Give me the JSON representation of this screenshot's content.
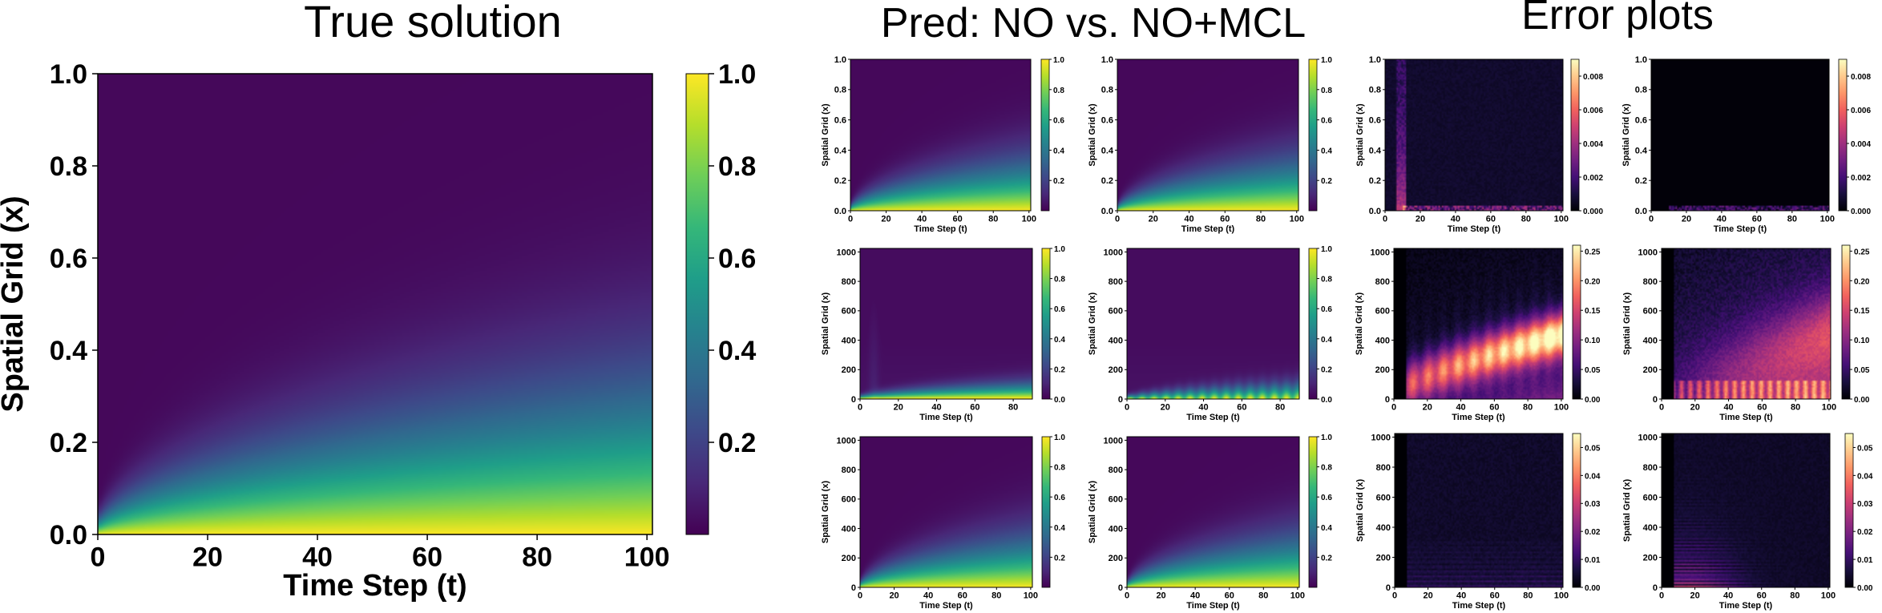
{
  "section_titles": {
    "true_solution": "True solution",
    "prediction": "Pred: NO vs. NO+MCL",
    "error": "Error plots"
  },
  "colors": {
    "background": "#ffffff",
    "viridis": [
      "#440154",
      "#482878",
      "#3e4989",
      "#31688e",
      "#26828e",
      "#1f9e89",
      "#35b779",
      "#6ece58",
      "#b5de2b",
      "#fde725"
    ],
    "magma": [
      "#000004",
      "#180f3d",
      "#440f76",
      "#721f81",
      "#9e2f7f",
      "#cd4071",
      "#f1605d",
      "#fd9668",
      "#feca8d",
      "#fcfdbf"
    ]
  },
  "chart_data": [
    {
      "id": "main",
      "type": "heatmap",
      "title": "True solution",
      "xlabel": "Time Step (t)",
      "ylabel": "Spatial Grid (x)",
      "xlim": [
        0,
        101
      ],
      "ylim": [
        0,
        1
      ],
      "xticks": [
        "0",
        "20",
        "40",
        "60",
        "80",
        "100"
      ],
      "yticks": [
        "0.0",
        "0.2",
        "0.4",
        "0.6",
        "0.8",
        "1.0"
      ],
      "colormap": "viridis",
      "colorbar_range": [
        0.0,
        1.0
      ],
      "colorbar_ticks": [
        "0.2",
        "0.4",
        "0.6",
        "0.8",
        "1.0"
      ],
      "colorbar_tick_values": [
        0.2,
        0.4,
        0.6,
        0.8,
        1.0
      ],
      "field": "diffusion"
    },
    {
      "id": "pred-no-row1",
      "type": "heatmap",
      "group": "prediction",
      "row": 1,
      "variant": "NO",
      "xlabel": "Time Step (t)",
      "ylabel": "Spatial Grid (x)",
      "xlim": [
        0,
        101
      ],
      "ylim": [
        0,
        1
      ],
      "xticks": [
        "0",
        "20",
        "40",
        "60",
        "80",
        "100"
      ],
      "yticks": [
        "0.0",
        "0.2",
        "0.4",
        "0.6",
        "0.8",
        "1.0"
      ],
      "colormap": "viridis",
      "colorbar_range": [
        0.0,
        1.0
      ],
      "colorbar_ticks": [
        "0.2",
        "0.4",
        "0.6",
        "0.8",
        "1.0"
      ],
      "colorbar_tick_values": [
        0.2,
        0.4,
        0.6,
        0.8,
        1.0
      ],
      "field": "diffusion"
    },
    {
      "id": "pred-mcl-row1",
      "type": "heatmap",
      "group": "prediction",
      "row": 1,
      "variant": "NO+MCL",
      "xlabel": "Time Step (t)",
      "ylabel": "Spatial Grid (x)",
      "xlim": [
        0,
        101
      ],
      "ylim": [
        0,
        1
      ],
      "xticks": [
        "0",
        "20",
        "40",
        "60",
        "80",
        "100"
      ],
      "yticks": [
        "0.0",
        "0.2",
        "0.4",
        "0.6",
        "0.8",
        "1.0"
      ],
      "colormap": "viridis",
      "colorbar_range": [
        0.0,
        1.0
      ],
      "colorbar_ticks": [
        "0.2",
        "0.4",
        "0.6",
        "0.8",
        "1.0"
      ],
      "colorbar_tick_values": [
        0.2,
        0.4,
        0.6,
        0.8,
        1.0
      ],
      "field": "diffusion"
    },
    {
      "id": "err-no-row1",
      "type": "heatmap",
      "group": "error",
      "row": 1,
      "variant": "NO",
      "xlabel": "Time Step (t)",
      "ylabel": "Spatial Grid (x)",
      "xlim": [
        0,
        101
      ],
      "ylim": [
        0,
        1
      ],
      "xticks": [
        "0",
        "20",
        "40",
        "60",
        "80",
        "100"
      ],
      "yticks": [
        "0.0",
        "0.2",
        "0.4",
        "0.6",
        "0.8",
        "1.0"
      ],
      "colormap": "magma",
      "colorbar_range": [
        0.0,
        0.009
      ],
      "colorbar_ticks": [
        "0.000",
        "0.002",
        "0.004",
        "0.006",
        "0.008"
      ],
      "colorbar_tick_values": [
        0.0,
        0.002,
        0.004,
        0.006,
        0.008
      ],
      "field": "error_small"
    },
    {
      "id": "err-mcl-row1",
      "type": "heatmap",
      "group": "error",
      "row": 1,
      "variant": "NO+MCL",
      "xlabel": "Time Step (t)",
      "ylabel": "Spatial Grid (x)",
      "xlim": [
        0,
        101
      ],
      "ylim": [
        0,
        1
      ],
      "xticks": [
        "0",
        "20",
        "40",
        "60",
        "80",
        "100"
      ],
      "yticks": [
        "0.0",
        "0.2",
        "0.4",
        "0.6",
        "0.8",
        "1.0"
      ],
      "colormap": "magma",
      "colorbar_range": [
        0.0,
        0.009
      ],
      "colorbar_ticks": [
        "0.000",
        "0.002",
        "0.004",
        "0.006",
        "0.008"
      ],
      "colorbar_tick_values": [
        0.0,
        0.002,
        0.004,
        0.006,
        0.008
      ],
      "field": "error_tiny"
    },
    {
      "id": "pred-no-row2",
      "type": "heatmap",
      "group": "prediction",
      "row": 2,
      "variant": "NO",
      "xlabel": "Time Step (t)",
      "ylabel": "Spatial Grid (x)",
      "xlim": [
        0,
        90
      ],
      "ylim": [
        0,
        1024
      ],
      "xticks": [
        "0",
        "20",
        "40",
        "60",
        "80"
      ],
      "yticks": [
        "0",
        "200",
        "400",
        "600",
        "800",
        "1000"
      ],
      "colormap": "viridis",
      "colorbar_range": [
        0.0,
        1.0
      ],
      "colorbar_ticks": [
        "0.0",
        "0.2",
        "0.4",
        "0.6",
        "0.8",
        "1.0"
      ],
      "colorbar_tick_values": [
        0.0,
        0.2,
        0.4,
        0.6,
        0.8,
        1.0
      ],
      "field": "narrow"
    },
    {
      "id": "pred-mcl-row2",
      "type": "heatmap",
      "group": "prediction",
      "row": 2,
      "variant": "NO+MCL",
      "xlabel": "Time Step (t)",
      "ylabel": "Spatial Grid (x)",
      "xlim": [
        0,
        90
      ],
      "ylim": [
        0,
        1024
      ],
      "xticks": [
        "0",
        "20",
        "40",
        "60",
        "80"
      ],
      "yticks": [
        "0",
        "200",
        "400",
        "600",
        "800",
        "1000"
      ],
      "colormap": "viridis",
      "colorbar_range": [
        0.0,
        1.0
      ],
      "colorbar_ticks": [
        "0.0",
        "0.2",
        "0.4",
        "0.6",
        "0.8",
        "1.0"
      ],
      "colorbar_tick_values": [
        0.0,
        0.2,
        0.4,
        0.6,
        0.8,
        1.0
      ],
      "field": "narrow_wavy"
    },
    {
      "id": "err-no-row2",
      "type": "heatmap",
      "group": "error",
      "row": 2,
      "variant": "NO",
      "xlabel": "Time Step (t)",
      "ylabel": "Spatial Grid (x)",
      "xlim": [
        0,
        101
      ],
      "ylim": [
        0,
        1024
      ],
      "xticks": [
        "0",
        "20",
        "40",
        "60",
        "80",
        "100"
      ],
      "yticks": [
        "0",
        "200",
        "400",
        "600",
        "800",
        "1000"
      ],
      "colormap": "magma",
      "colorbar_range": [
        0.0,
        0.26
      ],
      "colorbar_ticks": [
        "0.00",
        "0.05",
        "0.10",
        "0.15",
        "0.20",
        "0.25"
      ],
      "colorbar_tick_values": [
        0.0,
        0.05,
        0.1,
        0.15,
        0.2,
        0.25
      ],
      "field": "error_large"
    },
    {
      "id": "err-mcl-row2",
      "type": "heatmap",
      "group": "error",
      "row": 2,
      "variant": "NO+MCL",
      "xlabel": "Time Step (t)",
      "ylabel": "Spatial Grid (x)",
      "xlim": [
        0,
        101
      ],
      "ylim": [
        0,
        1024
      ],
      "xticks": [
        "0",
        "20",
        "40",
        "60",
        "80",
        "100"
      ],
      "yticks": [
        "0",
        "200",
        "400",
        "600",
        "800",
        "1000"
      ],
      "colormap": "magma",
      "colorbar_range": [
        0.0,
        0.26
      ],
      "colorbar_ticks": [
        "0.00",
        "0.05",
        "0.10",
        "0.15",
        "0.20",
        "0.25"
      ],
      "colorbar_tick_values": [
        0.0,
        0.05,
        0.1,
        0.15,
        0.2,
        0.25
      ],
      "field": "error_medium"
    },
    {
      "id": "pred-no-row3",
      "type": "heatmap",
      "group": "prediction",
      "row": 3,
      "variant": "NO",
      "xlabel": "Time Step (t)",
      "ylabel": "Spatial Grid (x)",
      "xlim": [
        0,
        101
      ],
      "ylim": [
        0,
        1024
      ],
      "xticks": [
        "0",
        "20",
        "40",
        "60",
        "80",
        "100"
      ],
      "yticks": [
        "0",
        "200",
        "400",
        "600",
        "800",
        "1000"
      ],
      "colormap": "viridis",
      "colorbar_range": [
        0.0,
        1.0
      ],
      "colorbar_ticks": [
        "0.2",
        "0.4",
        "0.6",
        "0.8",
        "1.0"
      ],
      "colorbar_tick_values": [
        0.2,
        0.4,
        0.6,
        0.8,
        1.0
      ],
      "field": "diffusion"
    },
    {
      "id": "pred-mcl-row3",
      "type": "heatmap",
      "group": "prediction",
      "row": 3,
      "variant": "NO+MCL",
      "xlabel": "Time Step (t)",
      "ylabel": "Spatial Grid (x)",
      "xlim": [
        0,
        101
      ],
      "ylim": [
        0,
        1024
      ],
      "xticks": [
        "0",
        "20",
        "40",
        "60",
        "80",
        "100"
      ],
      "yticks": [
        "0",
        "200",
        "400",
        "600",
        "800",
        "1000"
      ],
      "colormap": "viridis",
      "colorbar_range": [
        0.0,
        1.0
      ],
      "colorbar_ticks": [
        "0.2",
        "0.4",
        "0.6",
        "0.8",
        "1.0"
      ],
      "colorbar_tick_values": [
        0.2,
        0.4,
        0.6,
        0.8,
        1.0
      ],
      "field": "diffusion"
    },
    {
      "id": "err-no-row3",
      "type": "heatmap",
      "group": "error",
      "row": 3,
      "variant": "NO",
      "xlabel": "Time Step (t)",
      "ylabel": "Spatial Grid (x)",
      "xlim": [
        0,
        101
      ],
      "ylim": [
        0,
        1024
      ],
      "xticks": [
        "0",
        "20",
        "40",
        "60",
        "80",
        "100"
      ],
      "yticks": [
        "0",
        "200",
        "400",
        "600",
        "800",
        "1000"
      ],
      "colormap": "magma",
      "colorbar_range": [
        0.0,
        0.055
      ],
      "colorbar_ticks": [
        "0.00",
        "0.01",
        "0.02",
        "0.03",
        "0.04",
        "0.05"
      ],
      "colorbar_tick_values": [
        0.0,
        0.01,
        0.02,
        0.03,
        0.04,
        0.05
      ],
      "field": "error_faint"
    },
    {
      "id": "err-mcl-row3",
      "type": "heatmap",
      "group": "error",
      "row": 3,
      "variant": "NO+MCL",
      "xlabel": "Time Step (t)",
      "ylabel": "Spatial Grid (x)",
      "xlim": [
        0,
        101
      ],
      "ylim": [
        0,
        1024
      ],
      "xticks": [
        "0",
        "20",
        "40",
        "60",
        "80",
        "100"
      ],
      "yticks": [
        "0",
        "200",
        "400",
        "600",
        "800",
        "1000"
      ],
      "colormap": "magma",
      "colorbar_range": [
        0.0,
        0.055
      ],
      "colorbar_ticks": [
        "0.00",
        "0.01",
        "0.02",
        "0.03",
        "0.04",
        "0.05"
      ],
      "colorbar_tick_values": [
        0.0,
        0.01,
        0.02,
        0.03,
        0.04,
        0.05
      ],
      "field": "error_streaks"
    }
  ]
}
